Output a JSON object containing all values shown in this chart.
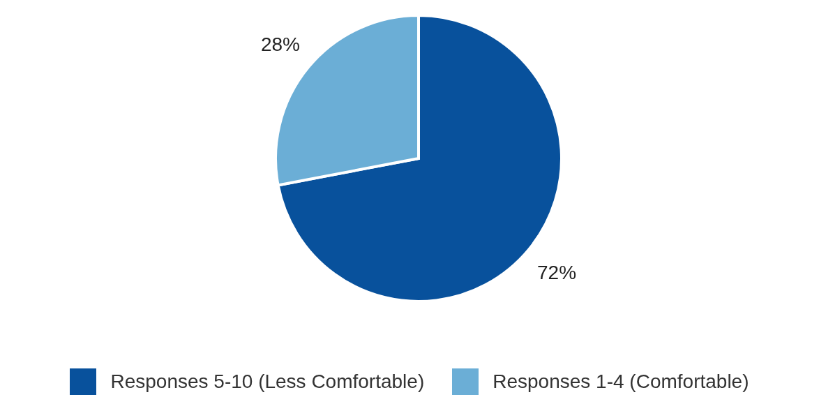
{
  "chart_data": {
    "type": "pie",
    "categories": [
      "Responses 5-10 (Less Comfortable)",
      "Responses 1-4 (Comfortable)"
    ],
    "values": [
      72,
      28
    ],
    "colors": [
      "#08519c",
      "#6baed6"
    ],
    "value_labels": [
      "72%",
      "28%"
    ],
    "legend": "bottom"
  }
}
